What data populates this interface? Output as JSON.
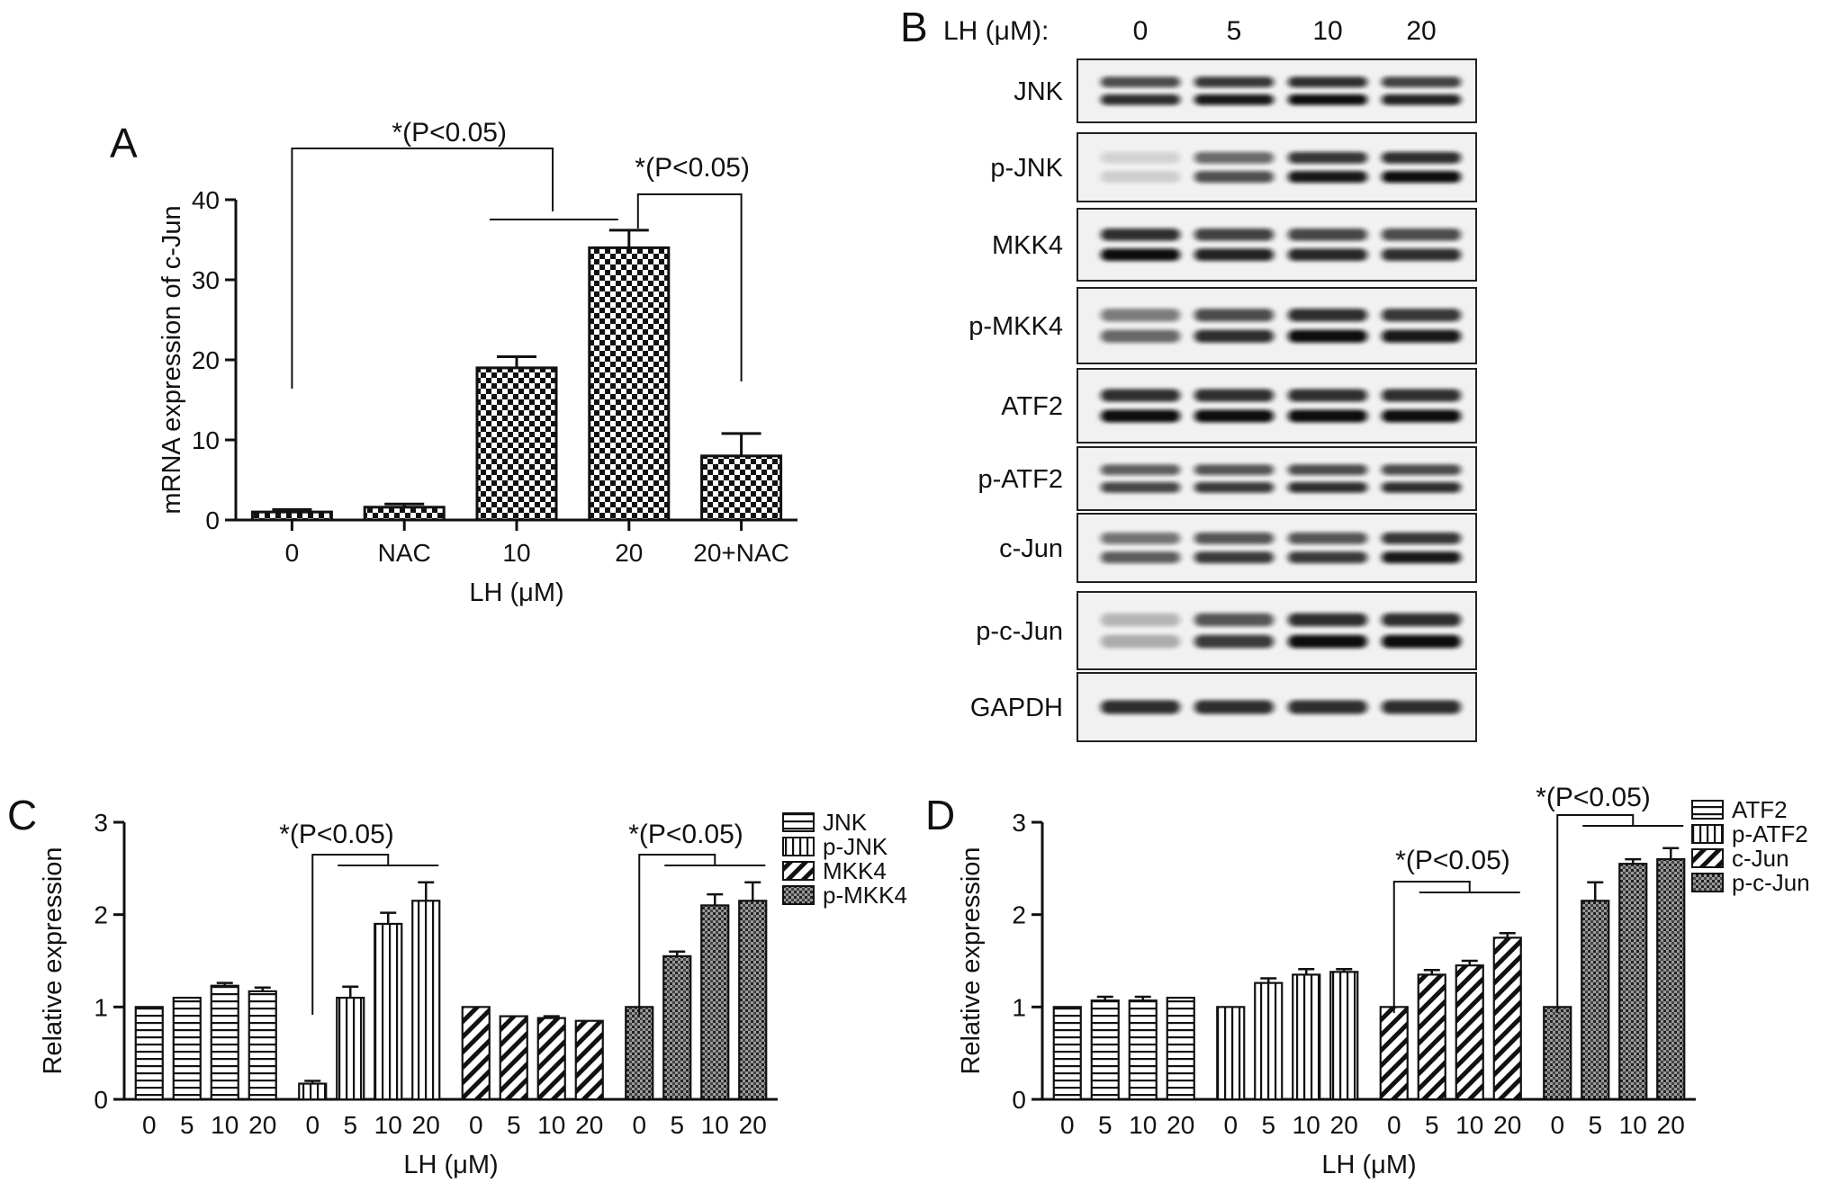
{
  "panel_a": {
    "letter": "A",
    "sig_label": "*(P<0.05)",
    "chart_data": {
      "type": "bar",
      "categories": [
        "0",
        "NAC",
        "10",
        "20",
        "20+NAC"
      ],
      "values": [
        1.0,
        1.6,
        19.0,
        34.0,
        8.0
      ],
      "errors": [
        0.3,
        0.4,
        1.4,
        2.2,
        2.8
      ],
      "xlabel": "LH (μM)",
      "ylabel": "mRNA expression of c-Jun",
      "ylim": [
        0,
        40
      ],
      "yticks": [
        "0",
        "10",
        "20",
        "30",
        "40"
      ],
      "grid": false,
      "pattern": "checkerboard"
    }
  },
  "panel_b": {
    "letter": "B",
    "dose_header": "LH (μM):",
    "doses": [
      "0",
      "5",
      "10",
      "20"
    ],
    "blots": [
      {
        "protein": "JNK",
        "bands": 2,
        "intensity": [
          0.85,
          0.95,
          1.0,
          0.9
        ]
      },
      {
        "protein": "p-JNK",
        "bands": 2,
        "intensity": [
          0.15,
          0.7,
          0.95,
          1.0
        ]
      },
      {
        "protein": "MKK4",
        "bands": 2,
        "intensity": [
          1.0,
          0.9,
          0.88,
          0.85
        ]
      },
      {
        "protein": "p-MKK4",
        "bands": 2,
        "intensity": [
          0.6,
          0.85,
          1.0,
          0.95
        ]
      },
      {
        "protein": "ATF2",
        "bands": 2,
        "intensity": [
          1.0,
          1.0,
          1.0,
          1.0
        ]
      },
      {
        "protein": "p-ATF2",
        "bands": 2,
        "intensity": [
          0.75,
          0.8,
          0.85,
          0.85
        ]
      },
      {
        "protein": "c-Jun",
        "bands": 2,
        "intensity": [
          0.65,
          0.8,
          0.8,
          0.95
        ]
      },
      {
        "protein": "p-c-Jun",
        "bands": 2,
        "intensity": [
          0.3,
          0.8,
          1.0,
          1.0
        ]
      },
      {
        "protein": "GAPDH",
        "bands": 1,
        "intensity": [
          1.0,
          1.0,
          1.0,
          1.0
        ]
      }
    ]
  },
  "panel_c": {
    "letter": "C",
    "sig_label": "*(P<0.05)",
    "chart_data": {
      "type": "bar",
      "categories": [
        "0",
        "5",
        "10",
        "20"
      ],
      "series": [
        {
          "name": "JNK",
          "values": [
            1.0,
            1.1,
            1.23,
            1.17
          ],
          "errors": [
            0,
            0,
            0.03,
            0.04
          ],
          "pattern": "hstripe"
        },
        {
          "name": "p-JNK",
          "values": [
            0.17,
            1.1,
            1.9,
            2.15
          ],
          "errors": [
            0.03,
            0.12,
            0.12,
            0.2
          ],
          "pattern": "vstripe"
        },
        {
          "name": "MKK4",
          "values": [
            1.0,
            0.9,
            0.88,
            0.85
          ],
          "errors": [
            0,
            0,
            0.02,
            0
          ],
          "pattern": "diag"
        },
        {
          "name": "p-MKK4",
          "values": [
            1.0,
            1.55,
            2.1,
            2.15
          ],
          "errors": [
            0,
            0.05,
            0.12,
            0.2
          ],
          "pattern": "dots"
        }
      ],
      "xlabel": "LH (μM)",
      "ylabel": "Relative expression",
      "ylim": [
        0,
        3
      ],
      "yticks": [
        "0",
        "1",
        "2",
        "3"
      ],
      "legend": "top-right",
      "grid": false
    }
  },
  "panel_d": {
    "letter": "D",
    "sig_label": "*(P<0.05)",
    "chart_data": {
      "type": "bar",
      "categories": [
        "0",
        "5",
        "10",
        "20"
      ],
      "series": [
        {
          "name": "ATF2",
          "values": [
            1.0,
            1.07,
            1.07,
            1.1
          ],
          "errors": [
            0,
            0.04,
            0.04,
            0
          ],
          "pattern": "hstripe"
        },
        {
          "name": "p-ATF2",
          "values": [
            1.0,
            1.26,
            1.35,
            1.38
          ],
          "errors": [
            0,
            0.05,
            0.06,
            0.03
          ],
          "pattern": "vstripe"
        },
        {
          "name": "c-Jun",
          "values": [
            1.0,
            1.35,
            1.45,
            1.75
          ],
          "errors": [
            0,
            0.05,
            0.05,
            0.05
          ],
          "pattern": "diag"
        },
        {
          "name": "p-c-Jun",
          "values": [
            1.0,
            2.15,
            2.55,
            2.6
          ],
          "errors": [
            0,
            0.2,
            0.05,
            0.12
          ],
          "pattern": "dots"
        }
      ],
      "xlabel": "LH (μM)",
      "ylabel": "Relative expression",
      "ylim": [
        0,
        3
      ],
      "yticks": [
        "0",
        "1",
        "2",
        "3"
      ],
      "legend": "top-right",
      "grid": false
    }
  }
}
